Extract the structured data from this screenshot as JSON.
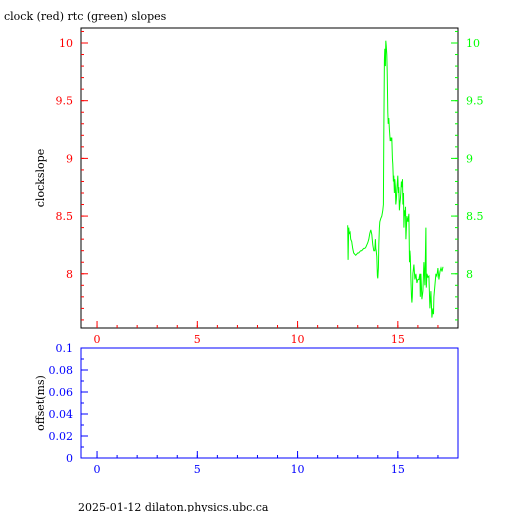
{
  "header": {
    "title": "clock (red) rtc (green) slopes"
  },
  "footer": {
    "text": "2025-01-12  dilaton.physics.ubc.ca"
  },
  "colors": {
    "clock": "#ff0000",
    "rtc": "#00ff00",
    "offset_axis": "#0000ff",
    "frame": "#000000"
  },
  "chart_data": [
    {
      "type": "line",
      "ylabel": "clockslope",
      "xlim": [
        -0.8,
        18.0
      ],
      "ylim": [
        7.53,
        10.13
      ],
      "x_ticks": [
        "0",
        "5",
        "10",
        "15"
      ],
      "y_ticks_left": [
        "8",
        "8.5",
        "9",
        "9.5",
        "10"
      ],
      "y_ticks_right": [
        "8",
        "8.5",
        "9",
        "9.5",
        "10"
      ],
      "series": [
        {
          "color": "#00ff00",
          "x": [
            12.5,
            12.52,
            12.55,
            12.58,
            12.62,
            12.65,
            12.7,
            12.75,
            12.8,
            12.85,
            12.9,
            12.95,
            13.0,
            13.05,
            13.1,
            13.15,
            13.2,
            13.25,
            13.3,
            13.35,
            13.4,
            13.45,
            13.5,
            13.55,
            13.6,
            13.65,
            13.7,
            13.75,
            13.8,
            13.85,
            13.88,
            13.9,
            13.92,
            13.95,
            13.98,
            14.0,
            14.03,
            14.05,
            14.08,
            14.1,
            14.15,
            14.2,
            14.25,
            14.28,
            14.3,
            14.33,
            14.35,
            14.38,
            14.4,
            14.42,
            14.45,
            14.47,
            14.5,
            14.52,
            14.55,
            14.58,
            14.6,
            14.62,
            14.65,
            14.68,
            14.7,
            14.73,
            14.75,
            14.78,
            14.8,
            14.83,
            14.85,
            14.88,
            14.9,
            14.93,
            14.95,
            14.98,
            15.0,
            15.03,
            15.05,
            15.08,
            15.1,
            15.13,
            15.15,
            15.18,
            15.2,
            15.23,
            15.25,
            15.28,
            15.3,
            15.33,
            15.35,
            15.38,
            15.4,
            15.45,
            15.5,
            15.55,
            15.58,
            15.6,
            15.62,
            15.65,
            15.68,
            15.7,
            15.72,
            15.75,
            15.8,
            15.85,
            15.9,
            15.95,
            16.0,
            16.05,
            16.1,
            16.12,
            16.15,
            16.2,
            16.25,
            16.3,
            16.35,
            16.4,
            16.42,
            16.45,
            16.5,
            16.55,
            16.6,
            16.65,
            16.7,
            16.75,
            16.78,
            16.8,
            16.85,
            16.9,
            16.95,
            17.0,
            17.05,
            17.1,
            17.15,
            17.2,
            17.25
          ],
          "values": [
            8.42,
            8.12,
            8.4,
            8.35,
            8.36,
            8.3,
            8.28,
            8.22,
            8.18,
            8.17,
            8.16,
            8.17,
            8.18,
            8.18,
            8.19,
            8.2,
            8.2,
            8.21,
            8.22,
            8.22,
            8.23,
            8.25,
            8.27,
            8.3,
            8.35,
            8.38,
            8.34,
            8.25,
            8.2,
            8.2,
            8.3,
            8.22,
            8.2,
            8.15,
            7.98,
            7.96,
            8.05,
            8.25,
            8.4,
            8.45,
            8.48,
            8.5,
            8.55,
            8.6,
            9.2,
            9.85,
            9.95,
            9.8,
            10.02,
            9.98,
            9.9,
            9.75,
            9.4,
            9.3,
            9.35,
            9.25,
            9.2,
            9.15,
            9.18,
            9.15,
            9.18,
            9.0,
            8.95,
            8.8,
            8.85,
            8.7,
            8.82,
            8.75,
            8.6,
            8.65,
            8.72,
            8.8,
            8.85,
            8.7,
            8.75,
            8.55,
            8.6,
            8.65,
            8.7,
            8.8,
            8.75,
            8.82,
            8.6,
            8.7,
            8.4,
            8.55,
            8.5,
            8.58,
            8.3,
            8.5,
            8.45,
            8.52,
            8.1,
            8.2,
            8.15,
            7.95,
            7.8,
            7.75,
            7.8,
            8.0,
            8.08,
            7.95,
            8.0,
            7.92,
            7.95,
            7.95,
            8.0,
            7.8,
            8.0,
            7.78,
            7.85,
            8.1,
            7.9,
            8.4,
            7.88,
            8.0,
            7.97,
            7.98,
            7.7,
            7.85,
            7.62,
            7.7,
            7.65,
            7.8,
            7.9,
            8.0,
            7.98,
            8.05,
            7.95,
            8.02,
            8.05,
            8.02,
            8.06
          ]
        }
      ]
    },
    {
      "type": "line",
      "ylabel": "offset(ms)",
      "xlim": [
        -0.8,
        18.0
      ],
      "ylim": [
        0,
        0.1
      ],
      "x_ticks": [
        "0",
        "5",
        "10",
        "15"
      ],
      "y_ticks": [
        "0",
        "0.02",
        "0.04",
        "0.06",
        "0.08",
        "0.1"
      ],
      "series": []
    }
  ]
}
